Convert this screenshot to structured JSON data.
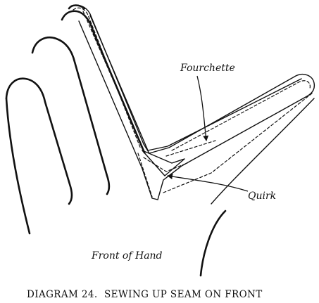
{
  "labels": {
    "fourchette": "Fourchette",
    "quirk": "Quirk",
    "front_of_hand": "Front of Hand"
  },
  "caption": "DIAGRAM 24.  SEWING UP SEAM ON FRONT"
}
